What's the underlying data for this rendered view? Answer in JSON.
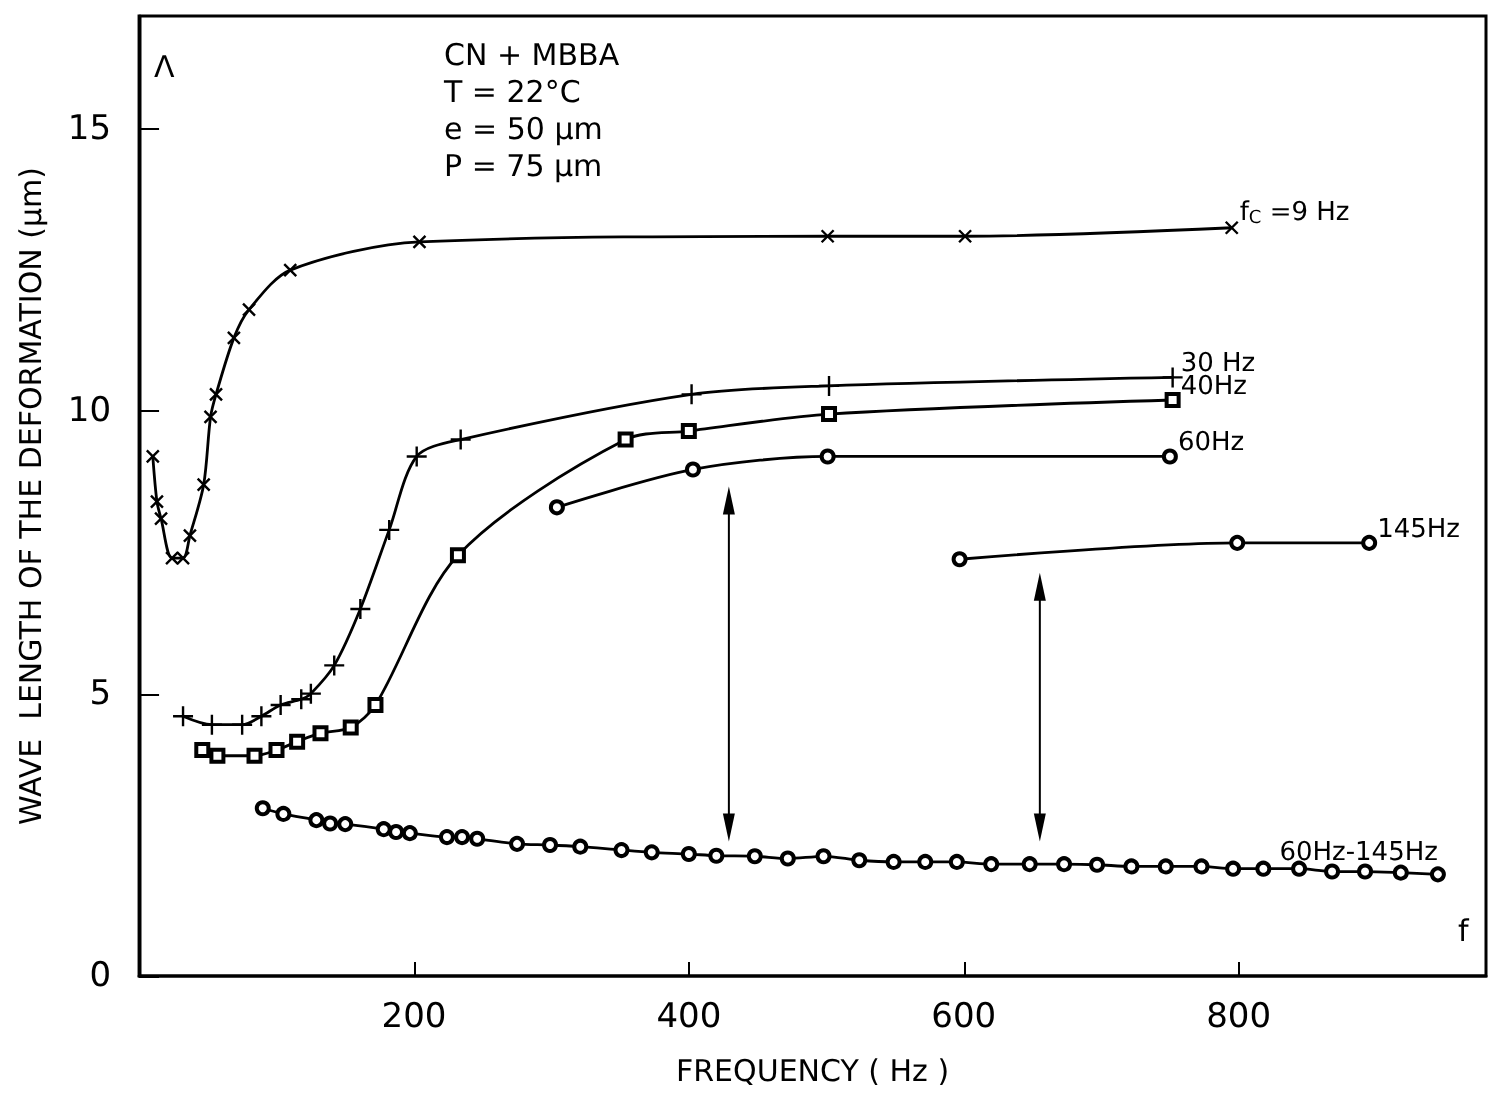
{
  "chart_data": {
    "type": "line",
    "xlabel": "FREQUENCY ( Hz )",
    "ylabel": "WAVE  LENGTH OF THE DEFORMATION (μm)",
    "xlim": [
      0,
      980
    ],
    "ylim": [
      0,
      17
    ],
    "xticks": [
      {
        "value": 0,
        "label": null
      },
      200,
      400,
      600,
      800
    ],
    "yticks": [
      0,
      5,
      10,
      15
    ],
    "grid": false,
    "legend": false,
    "annotations": [
      "Λ",
      "CN + MBBA",
      "T = 22°C",
      "e = 50 μm",
      "P = 75 μm",
      "f"
    ],
    "series": [
      {
        "name": "f$_{C}$ =9 Hz",
        "color": "#000000",
        "marker": "cross",
        "x": [
          10,
          13,
          16,
          24,
          32,
          37,
          47,
          52,
          56,
          69,
          80,
          110,
          204,
          501,
          601,
          795
        ],
        "values": [
          9.2,
          8.4,
          8.1,
          7.4,
          7.4,
          7.8,
          8.7,
          9.9,
          10.3,
          11.3,
          11.8,
          12.5,
          13.0,
          13.1,
          13.1,
          13.25
        ]
      },
      {
        "name": "30 Hz",
        "color": "#000000",
        "marker": "plus",
        "x": [
          32,
          53,
          75,
          89,
          103,
          118,
          125,
          142,
          161,
          182,
          202,
          234,
          402,
          502,
          752
        ],
        "values": [
          4.6,
          4.45,
          4.45,
          4.6,
          4.8,
          4.9,
          5.0,
          5.5,
          6.5,
          7.9,
          9.2,
          9.5,
          10.3,
          10.45,
          10.6
        ]
      },
      {
        "name": "40Hz",
        "color": "#000000",
        "marker": "square",
        "x": [
          46,
          57,
          84,
          100,
          115,
          132,
          154,
          172,
          232,
          354,
          400,
          502,
          752
        ],
        "values": [
          4.0,
          3.9,
          3.9,
          4.0,
          4.15,
          4.3,
          4.4,
          4.8,
          7.45,
          9.5,
          9.65,
          9.95,
          10.2
        ]
      },
      {
        "name": "60Hz",
        "color": "#000000",
        "marker": "circle",
        "x": [
          304,
          403,
          501,
          750
        ],
        "values": [
          8.3,
          8.97,
          9.2,
          9.2
        ]
      },
      {
        "name": "145Hz",
        "color": "#000000",
        "marker": "circle",
        "x": [
          597,
          799,
          895
        ],
        "values": [
          7.38,
          7.67,
          7.67
        ]
      },
      {
        "name": "60Hz-145Hz",
        "color": "#000000",
        "marker": "circle",
        "x": [
          90,
          105,
          129,
          139,
          150,
          178,
          187,
          197,
          224,
          235,
          246,
          275,
          299,
          321,
          351,
          373,
          400,
          420,
          448,
          472,
          498,
          524,
          549,
          572,
          595,
          620,
          648,
          673,
          697,
          722,
          747,
          773,
          796,
          818,
          844,
          868,
          892,
          918,
          945
        ],
        "values": [
          2.97,
          2.87,
          2.76,
          2.7,
          2.69,
          2.6,
          2.55,
          2.53,
          2.46,
          2.46,
          2.43,
          2.34,
          2.32,
          2.29,
          2.23,
          2.19,
          2.16,
          2.13,
          2.12,
          2.08,
          2.12,
          2.05,
          2.02,
          2.02,
          2.02,
          1.98,
          1.98,
          1.98,
          1.97,
          1.94,
          1.94,
          1.94,
          1.9,
          1.9,
          1.9,
          1.85,
          1.85,
          1.83,
          1.8
        ]
      }
    ]
  }
}
